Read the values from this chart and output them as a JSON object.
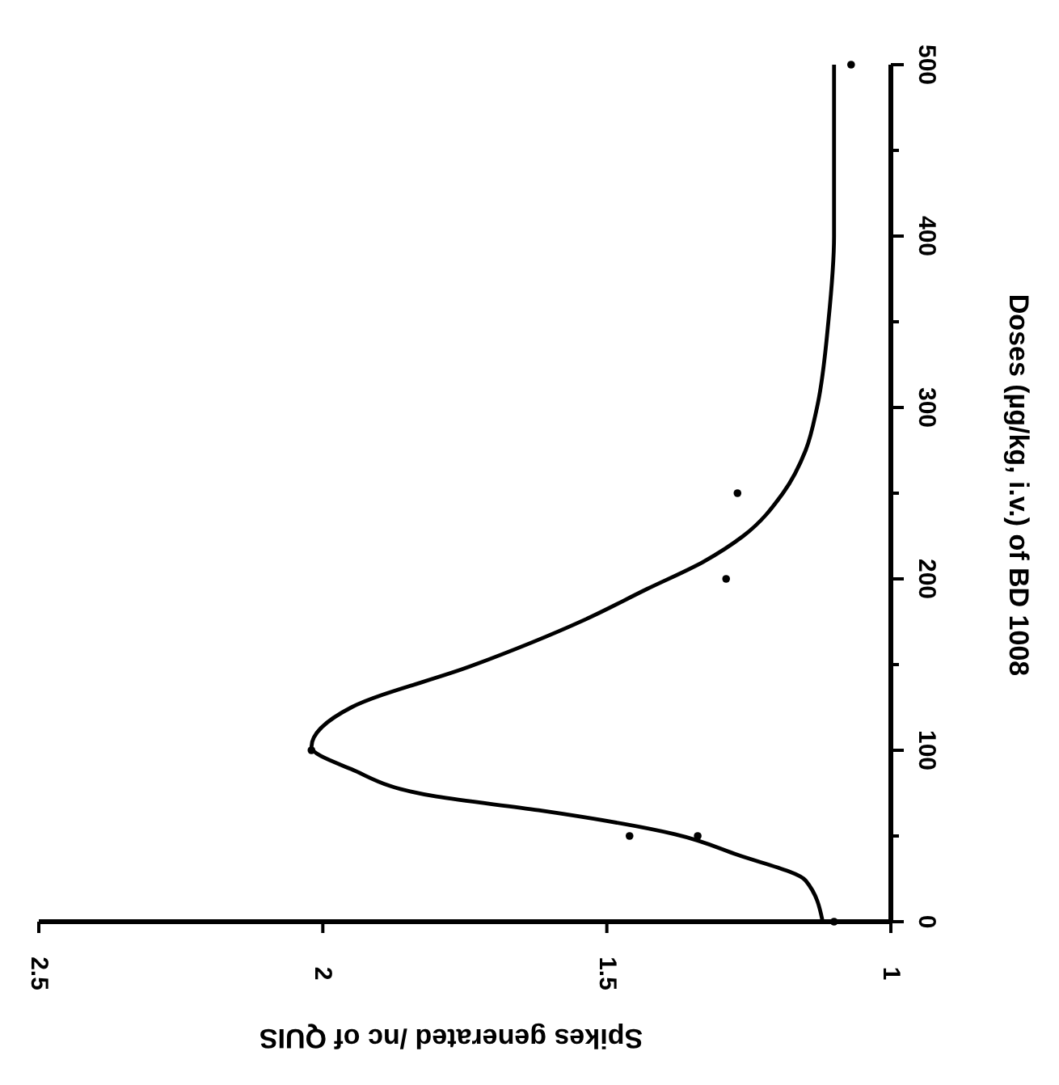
{
  "chart_data": {
    "type": "line",
    "xlabel": "Spikes generated /nc of QUIS",
    "ylabel": "Doses (µg/kg, i.v.) of BD 1008",
    "xlim": [
      2.5,
      1
    ],
    "xticks": [
      2.5,
      2,
      1.5,
      1
    ],
    "ylim": [
      0,
      500
    ],
    "yticks": [
      0,
      100,
      200,
      300,
      400,
      500
    ],
    "grid": false,
    "series": [
      {
        "color": "#000000",
        "marker": "none",
        "line_style": "solid",
        "x": [
          1.12,
          1.15,
          1.27,
          1.38,
          1.62,
          1.8,
          1.95,
          2.02,
          1.95,
          1.74,
          1.54,
          1.43,
          1.33,
          1.26,
          1.19,
          1.15,
          1.13,
          1.11,
          1.1,
          1.1
        ],
        "values": [
          0,
          24,
          39,
          51,
          65,
          73,
          89,
          102,
          125,
          149,
          176,
          194,
          210,
          225,
          250,
          275,
          300,
          350,
          400,
          500
        ]
      },
      {
        "type": "scatter",
        "color": "#000000",
        "marker": "circle",
        "x": [
          1.1,
          1.46,
          1.34,
          2.02,
          1.29,
          1.27,
          1.07
        ],
        "values": [
          0,
          50,
          50,
          100,
          200,
          250,
          500
        ]
      }
    ]
  }
}
